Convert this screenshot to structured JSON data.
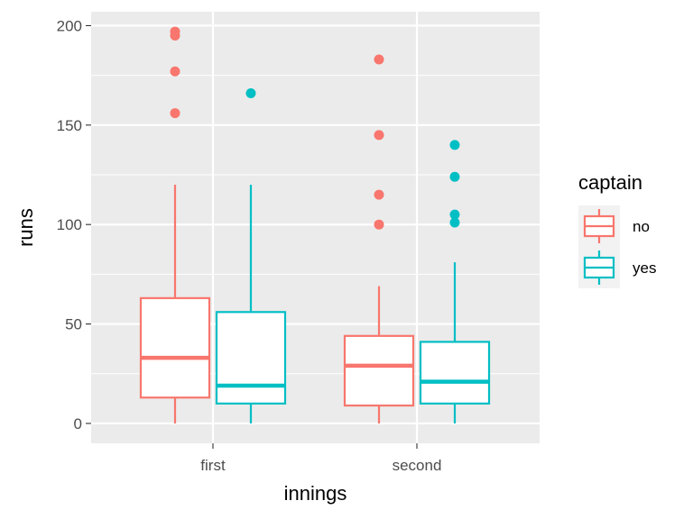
{
  "chart_data": {
    "type": "boxplot",
    "title": "",
    "xlabel": "innings",
    "ylabel": "runs",
    "categories": [
      "first",
      "second"
    ],
    "ylim": [
      -10,
      207
    ],
    "yticks": [
      0,
      50,
      100,
      150,
      200
    ],
    "ytick_labels": [
      "0",
      "50",
      "100",
      "150",
      "200"
    ],
    "grid": true,
    "legend": {
      "title": "captain",
      "position": "right"
    },
    "series": [
      {
        "name": "no",
        "color": "#F8766D",
        "boxes": [
          {
            "category": "first",
            "min": 0,
            "q1": 13,
            "median": 33,
            "q3": 63,
            "max": 120,
            "outliers": [
              156,
              177,
              195,
              197
            ]
          },
          {
            "category": "second",
            "min": 0,
            "q1": 9,
            "median": 29,
            "q3": 44,
            "max": 69,
            "outliers": [
              100,
              115,
              145,
              183
            ]
          }
        ]
      },
      {
        "name": "yes",
        "color": "#00BFC4",
        "boxes": [
          {
            "category": "first",
            "min": 0,
            "q1": 10,
            "median": 19,
            "q3": 56,
            "max": 120,
            "outliers": [
              166
            ]
          },
          {
            "category": "second",
            "min": 0,
            "q1": 10,
            "median": 21,
            "q3": 41,
            "max": 81,
            "outliers": [
              101,
              105,
              124,
              140
            ]
          }
        ]
      }
    ]
  }
}
